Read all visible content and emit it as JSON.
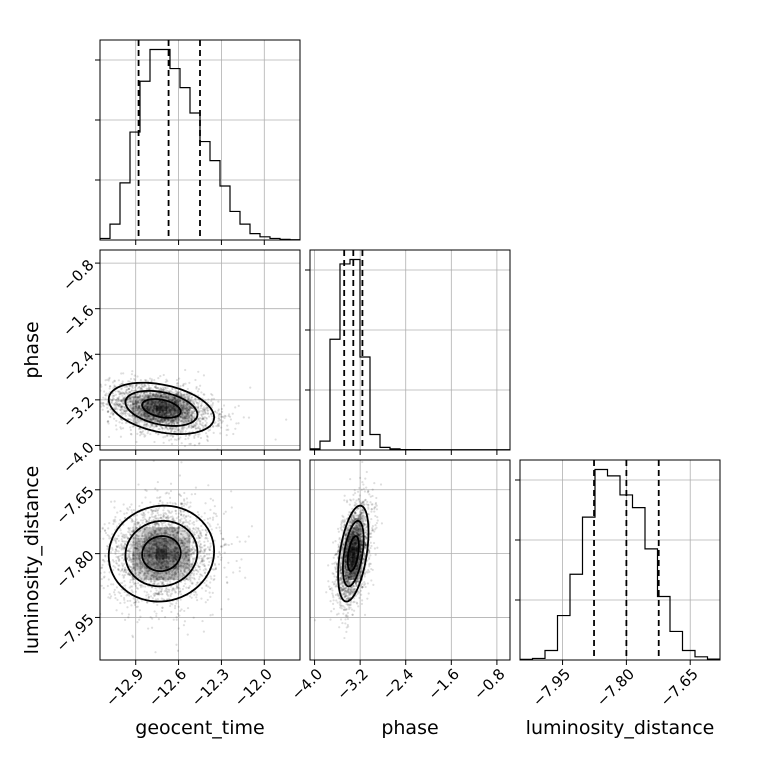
{
  "chart_data": {
    "type": "corner",
    "parameters": [
      "geocent_time",
      "phase",
      "luminosity_distance"
    ],
    "grid": true,
    "ranges": {
      "geocent_time": [
        -13.15,
        -11.75
      ],
      "phase": [
        -4.08,
        -0.57
      ],
      "luminosity_distance": [
        -8.05,
        -7.58
      ]
    },
    "ticks": {
      "geocent_time": [
        "−12.9",
        "−12.6",
        "−12.3",
        "−12.0"
      ],
      "phase": [
        "−4.0",
        "−3.2",
        "−2.4",
        "−1.6",
        "−0.8"
      ],
      "luminosity_distance": [
        "−7.95",
        "−7.80",
        "−7.65"
      ]
    },
    "tick_values": {
      "geocent_time": [
        -12.9,
        -12.6,
        -12.3,
        -12.0
      ],
      "phase": [
        -4.0,
        -3.2,
        -2.4,
        -1.6,
        -0.8
      ],
      "luminosity_distance": [
        -7.95,
        -7.8,
        -7.65
      ]
    },
    "quantiles": {
      "geocent_time": [
        -12.88,
        -12.67,
        -12.45
      ],
      "phase": [
        -3.48,
        -3.32,
        -3.16
      ],
      "luminosity_distance": [
        -7.876,
        -7.8,
        -7.724
      ]
    },
    "histograms": {
      "geocent_time": {
        "range": [
          -13.15,
          -11.75
        ],
        "counts": [
          0.5,
          5,
          18,
          34,
          50,
          60,
          60,
          54,
          48,
          40,
          31,
          25,
          17,
          9,
          5,
          2,
          1,
          0.5,
          0.2,
          0.1
        ]
      },
      "phase": {
        "range": [
          -4.08,
          -0.57
        ],
        "counts": [
          0.5,
          4,
          50,
          84,
          86,
          42,
          7,
          1.2,
          0.5,
          0.2,
          0.2,
          0.1,
          0.1,
          0.1,
          0.1,
          0.1,
          0.1,
          0.1,
          0.1,
          0.1
        ]
      },
      "luminosity_distance": {
        "range": [
          -8.05,
          -7.58
        ],
        "counts": [
          0.2,
          0.5,
          3,
          14,
          27,
          45,
          60,
          58,
          52,
          48,
          35,
          20,
          9,
          3,
          1,
          0.3
        ]
      }
    },
    "posterior_2d": {
      "phase_vs_geocent_time": {
        "mean": [
          -12.72,
          -3.35
        ],
        "sd": [
          0.18,
          0.22
        ],
        "rho": -0.35
      },
      "luminosity_distance_vs_geocent_time": {
        "mean": [
          -12.72,
          -7.8
        ],
        "sd": [
          0.18,
          0.055
        ],
        "rho": 0.05
      },
      "luminosity_distance_vs_phase": {
        "mean": [
          -3.32,
          -7.8
        ],
        "sd": [
          0.13,
          0.055
        ],
        "rho": 0.45
      }
    }
  }
}
